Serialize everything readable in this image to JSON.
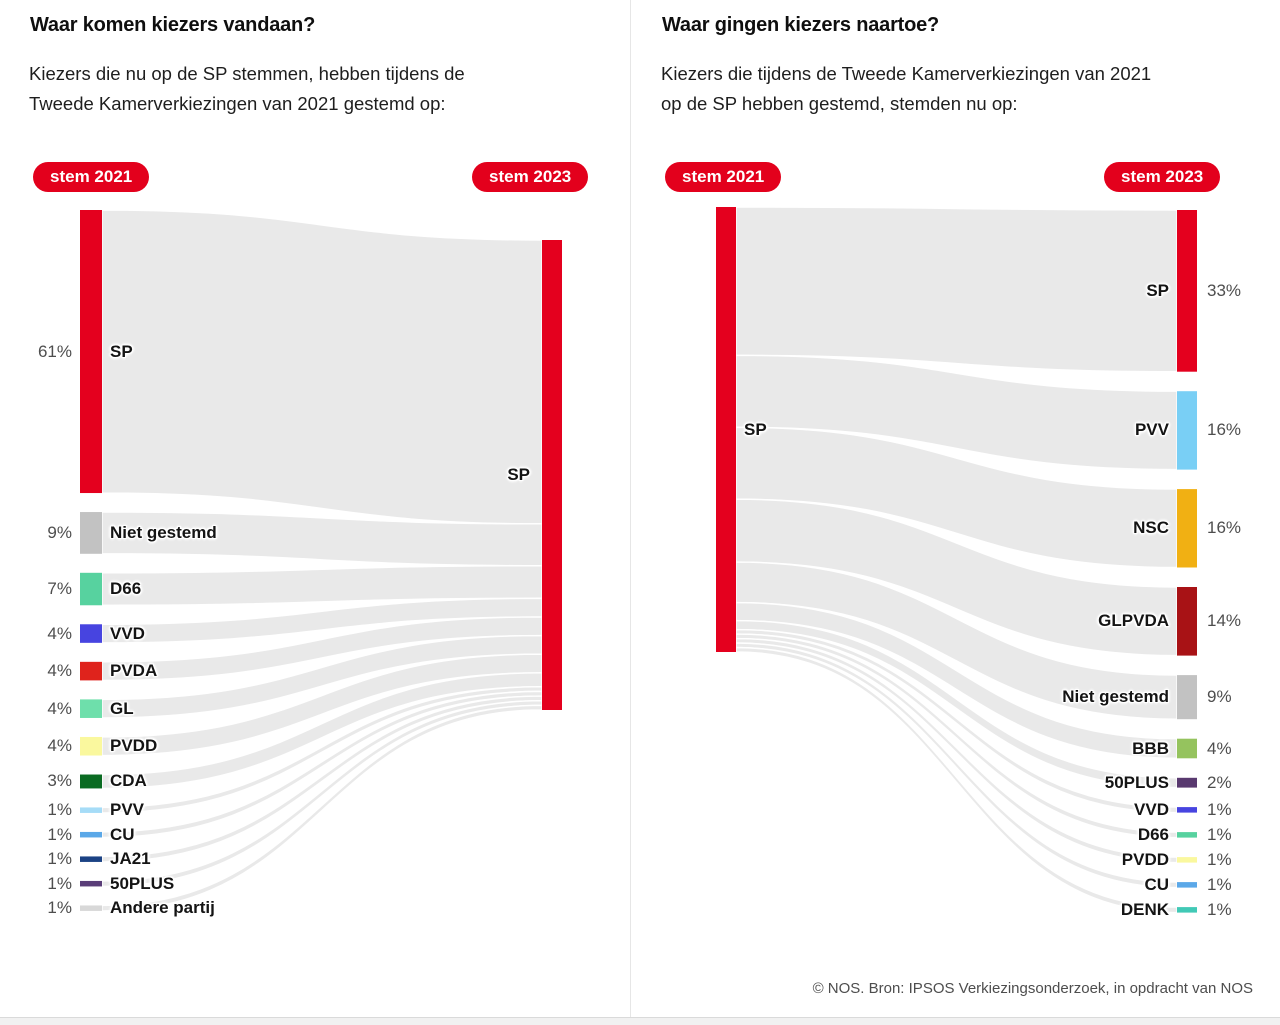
{
  "page": {
    "accent_red": "#e3001c",
    "flow_color": "#e9e9e9",
    "footer_text": "© NOS. Bron: IPSOS Verkiezingsonderzoek, in opdracht van NOS"
  },
  "chart_data": [
    {
      "type": "sankey",
      "title": "Waar komen kiezers vandaan?",
      "subtitle_lines": [
        "Kiezers die nu op de SP stemmen, hebben tijdens de",
        "Tweede Kamerverkiezingen van 2021 gestemd op:"
      ],
      "badge_2021": "stem 2021",
      "badge_2023": "stem 2023",
      "direction": "many-sources-to-one-target",
      "hub": {
        "label": "SP",
        "side": "right",
        "year": "stem 2023",
        "color": "#e4001e"
      },
      "nodes": [
        {
          "label": "SP",
          "pct": 61,
          "color": "#e4001e"
        },
        {
          "label": "Niet gestemd",
          "pct": 9,
          "color": "#c2c2c2"
        },
        {
          "label": "D66",
          "pct": 7,
          "color": "#57d29f"
        },
        {
          "label": "VVD",
          "pct": 4,
          "color": "#4744e0"
        },
        {
          "label": "PVDA",
          "pct": 4,
          "color": "#df231c"
        },
        {
          "label": "GL",
          "pct": 4,
          "color": "#6edfab"
        },
        {
          "label": "PVDD",
          "pct": 4,
          "color": "#faf89e"
        },
        {
          "label": "CDA",
          "pct": 3,
          "color": "#0a6b22"
        },
        {
          "label": "PVV",
          "pct": 1,
          "color": "#a6dcf7"
        },
        {
          "label": "CU",
          "pct": 1,
          "color": "#5ba8e8"
        },
        {
          "label": "JA21",
          "pct": 1,
          "color": "#1b4284"
        },
        {
          "label": "50PLUS",
          "pct": 1,
          "color": "#5a3d78"
        },
        {
          "label": "Andere partij",
          "pct": 1,
          "color": "#d8d8d8"
        }
      ]
    },
    {
      "type": "sankey",
      "title": "Waar gingen kiezers naartoe?",
      "subtitle_lines": [
        "Kiezers die tijdens de Tweede Kamerverkiezingen van 2021",
        "op de SP hebben gestemd, stemden nu op:"
      ],
      "badge_2021": "stem 2021",
      "badge_2023": "stem 2023",
      "direction": "one-source-to-many-targets",
      "hub": {
        "label": "SP",
        "side": "left",
        "year": "stem 2021",
        "color": "#e4001e"
      },
      "nodes": [
        {
          "label": "SP",
          "pct": 33,
          "color": "#e4001e"
        },
        {
          "label": "PVV",
          "pct": 16,
          "color": "#79cff5"
        },
        {
          "label": "NSC",
          "pct": 16,
          "color": "#f1b013"
        },
        {
          "label": "GLPVDA",
          "pct": 14,
          "color": "#a81215"
        },
        {
          "label": "Niet gestemd",
          "pct": 9,
          "color": "#c2c2c2"
        },
        {
          "label": "BBB",
          "pct": 4,
          "color": "#95c35e"
        },
        {
          "label": "50PLUS",
          "pct": 2,
          "color": "#59396f"
        },
        {
          "label": "VVD",
          "pct": 1,
          "color": "#4744e0"
        },
        {
          "label": "D66",
          "pct": 1,
          "color": "#57d29f"
        },
        {
          "label": "PVDD",
          "pct": 1,
          "color": "#faf89e"
        },
        {
          "label": "CU",
          "pct": 1,
          "color": "#5ba8e8"
        },
        {
          "label": "DENK",
          "pct": 1,
          "color": "#41c9b6"
        }
      ]
    }
  ]
}
